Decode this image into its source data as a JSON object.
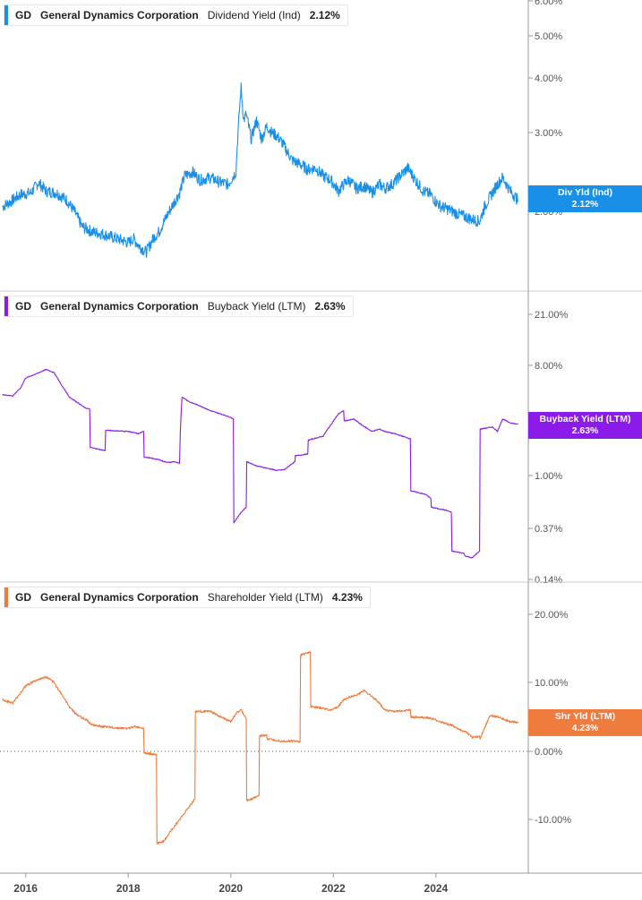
{
  "chart_data": [
    {
      "type": "line",
      "ticker": "GD",
      "company": "General Dynamics Corporation",
      "metric": "Dividend Yield (Ind)",
      "current_value": "2.12%",
      "tag_label": "Div Yld (Ind)",
      "color": "#1a8fe8",
      "y_scale": "log",
      "y_ticks": [
        "6.00%",
        "5.00%",
        "4.00%",
        "3.00%",
        "2.00%"
      ],
      "series": [
        {
          "x": [
            2015.55,
            2015.7,
            2015.9,
            2016.1,
            2016.25,
            2016.4,
            2016.6,
            2016.8,
            2016.95,
            2017.1,
            2017.3,
            2017.5,
            2017.7,
            2017.9,
            2018.0,
            2018.1,
            2018.2,
            2018.35,
            2018.5,
            2018.6,
            2018.7,
            2018.8,
            2018.9,
            2019.0,
            2019.1,
            2019.25,
            2019.4,
            2019.6,
            2019.8,
            2019.95,
            2020.1,
            2020.2,
            2020.25,
            2020.3,
            2020.4,
            2020.5,
            2020.6,
            2020.7,
            2020.8,
            2020.9,
            2021.0,
            2021.1,
            2021.2,
            2021.35,
            2021.5,
            2021.65,
            2021.8,
            2021.95,
            2022.1,
            2022.2,
            2022.3,
            2022.45,
            2022.6,
            2022.75,
            2022.9,
            2023.0,
            2023.15,
            2023.3,
            2023.45,
            2023.6,
            2023.75,
            2023.9,
            2024.0,
            2024.1,
            2024.25,
            2024.4,
            2024.55,
            2024.7,
            2024.85,
            2024.95,
            2025.05,
            2025.2,
            2025.3,
            2025.45,
            2025.6
          ],
          "y": [
            2.05,
            2.1,
            2.18,
            2.2,
            2.32,
            2.22,
            2.2,
            2.12,
            2.0,
            1.85,
            1.8,
            1.78,
            1.75,
            1.72,
            1.7,
            1.74,
            1.68,
            1.62,
            1.75,
            1.8,
            1.9,
            2.0,
            2.1,
            2.2,
            2.4,
            2.45,
            2.35,
            2.38,
            2.32,
            2.3,
            2.45,
            3.8,
            3.2,
            3.3,
            2.9,
            3.2,
            2.9,
            3.1,
            3.0,
            2.95,
            2.85,
            2.72,
            2.6,
            2.55,
            2.48,
            2.5,
            2.4,
            2.35,
            2.22,
            2.3,
            2.35,
            2.25,
            2.28,
            2.2,
            2.3,
            2.25,
            2.3,
            2.4,
            2.5,
            2.35,
            2.22,
            2.18,
            2.1,
            2.05,
            2.02,
            1.98,
            1.95,
            1.92,
            1.9,
            2.05,
            2.15,
            2.3,
            2.38,
            2.22,
            2.12
          ]
        }
      ]
    },
    {
      "type": "line",
      "ticker": "GD",
      "company": "General Dynamics Corporation",
      "metric": "Buyback Yield (LTM)",
      "current_value": "2.63%",
      "tag_label": "Buyback Yield (LTM)",
      "color": "#8a1be8",
      "y_scale": "log",
      "y_ticks": [
        "21.00%",
        "8.00%",
        "1.00%",
        "0.37%",
        "0.14%"
      ],
      "series": [
        {
          "x": [
            2015.55,
            2015.75,
            2015.9,
            2016.0,
            2016.2,
            2016.4,
            2016.55,
            2016.7,
            2016.85,
            2017.0,
            2017.15,
            2017.25,
            2017.26,
            2017.55,
            2017.56,
            2018.0,
            2018.1,
            2018.2,
            2018.3,
            2018.31,
            2018.6,
            2018.7,
            2018.8,
            2018.9,
            2019.0,
            2019.05,
            2019.2,
            2019.35,
            2019.6,
            2019.8,
            2020.0,
            2020.05,
            2020.06,
            2020.2,
            2020.3,
            2020.31,
            2020.5,
            2020.7,
            2020.9,
            2021.05,
            2021.25,
            2021.26,
            2021.5,
            2021.51,
            2021.8,
            2021.95,
            2022.1,
            2022.2,
            2022.21,
            2022.4,
            2022.55,
            2022.75,
            2022.9,
            2023.0,
            2023.2,
            2023.5,
            2023.51,
            2023.8,
            2023.9,
            2023.91,
            2024.2,
            2024.3,
            2024.31,
            2024.55,
            2024.56,
            2024.7,
            2024.85,
            2024.86,
            2025.1,
            2025.2,
            2025.3,
            2025.45,
            2025.6
          ],
          "y": [
            4.6,
            4.5,
            5.2,
            6.3,
            6.8,
            7.4,
            7.0,
            5.5,
            4.4,
            4.0,
            3.6,
            3.5,
            1.7,
            1.6,
            2.35,
            2.3,
            2.25,
            2.2,
            2.3,
            1.42,
            1.35,
            1.3,
            1.28,
            1.3,
            1.25,
            4.4,
            4.0,
            3.8,
            3.4,
            3.2,
            3.0,
            2.9,
            0.41,
            0.5,
            0.55,
            1.3,
            1.2,
            1.15,
            1.1,
            1.12,
            1.3,
            1.45,
            1.5,
            1.95,
            2.1,
            2.6,
            3.2,
            3.4,
            2.8,
            2.9,
            2.6,
            2.3,
            2.4,
            2.3,
            2.2,
            2.0,
            0.75,
            0.7,
            0.65,
            0.55,
            0.52,
            0.5,
            0.24,
            0.23,
            0.22,
            0.21,
            0.24,
            2.4,
            2.5,
            2.3,
            2.9,
            2.7,
            2.63
          ]
        }
      ]
    },
    {
      "type": "line",
      "ticker": "GD",
      "company": "General Dynamics Corporation",
      "metric": "Shareholder Yield (LTM)",
      "current_value": "4.23%",
      "tag_label": "Shr Yld (LTM)",
      "color": "#ef7b3c",
      "y_scale": "linear",
      "ylim": [
        -14.5,
        21.5
      ],
      "y_ticks": [
        "20.00%",
        "10.00%",
        "0.00%",
        "-10.00%"
      ],
      "series": [
        {
          "x": [
            2015.55,
            2015.75,
            2015.9,
            2016.0,
            2016.2,
            2016.4,
            2016.55,
            2016.7,
            2016.85,
            2017.0,
            2017.2,
            2017.3,
            2017.6,
            2017.8,
            2018.0,
            2018.1,
            2018.3,
            2018.31,
            2018.55,
            2018.56,
            2018.7,
            2018.8,
            2018.9,
            2019.05,
            2019.2,
            2019.3,
            2019.31,
            2019.6,
            2019.8,
            2020.0,
            2020.1,
            2020.2,
            2020.3,
            2020.31,
            2020.55,
            2020.56,
            2020.7,
            2020.71,
            2021.0,
            2021.2,
            2021.35,
            2021.36,
            2021.55,
            2021.56,
            2021.75,
            2021.95,
            2022.1,
            2022.2,
            2022.3,
            2022.45,
            2022.6,
            2022.75,
            2022.9,
            2023.0,
            2023.2,
            2023.5,
            2023.51,
            2023.8,
            2023.9,
            2024.0,
            2024.3,
            2024.55,
            2024.56,
            2024.7,
            2024.85,
            2024.86,
            2025.05,
            2025.2,
            2025.35,
            2025.45,
            2025.6
          ],
          "y": [
            7.5,
            7.0,
            8.5,
            9.5,
            10.3,
            10.8,
            10.0,
            8.3,
            6.5,
            5.3,
            4.5,
            3.8,
            3.5,
            3.4,
            3.3,
            3.6,
            3.4,
            -0.2,
            -0.5,
            -13.5,
            -13.2,
            -12.0,
            -11.0,
            -9.5,
            -8.0,
            -7.0,
            5.8,
            5.8,
            5.0,
            4.3,
            5.5,
            6.0,
            4.8,
            -7.3,
            -6.5,
            2.2,
            2.4,
            1.8,
            1.5,
            1.5,
            1.4,
            14.0,
            14.5,
            6.5,
            6.3,
            6.0,
            6.5,
            7.5,
            7.8,
            8.2,
            8.8,
            8.0,
            7.0,
            6.0,
            5.8,
            6.0,
            5.0,
            4.9,
            4.8,
            4.5,
            3.8,
            2.8,
            3.0,
            2.0,
            2.2,
            1.8,
            5.2,
            5.0,
            4.6,
            4.3,
            4.23
          ]
        }
      ]
    }
  ],
  "x_axis": {
    "range": [
      2015.5,
      2025.8
    ],
    "ticks": [
      2016,
      2018,
      2020,
      2022,
      2024
    ],
    "tick_labels": [
      "2016",
      "2018",
      "2020",
      "2022",
      "2024"
    ]
  }
}
